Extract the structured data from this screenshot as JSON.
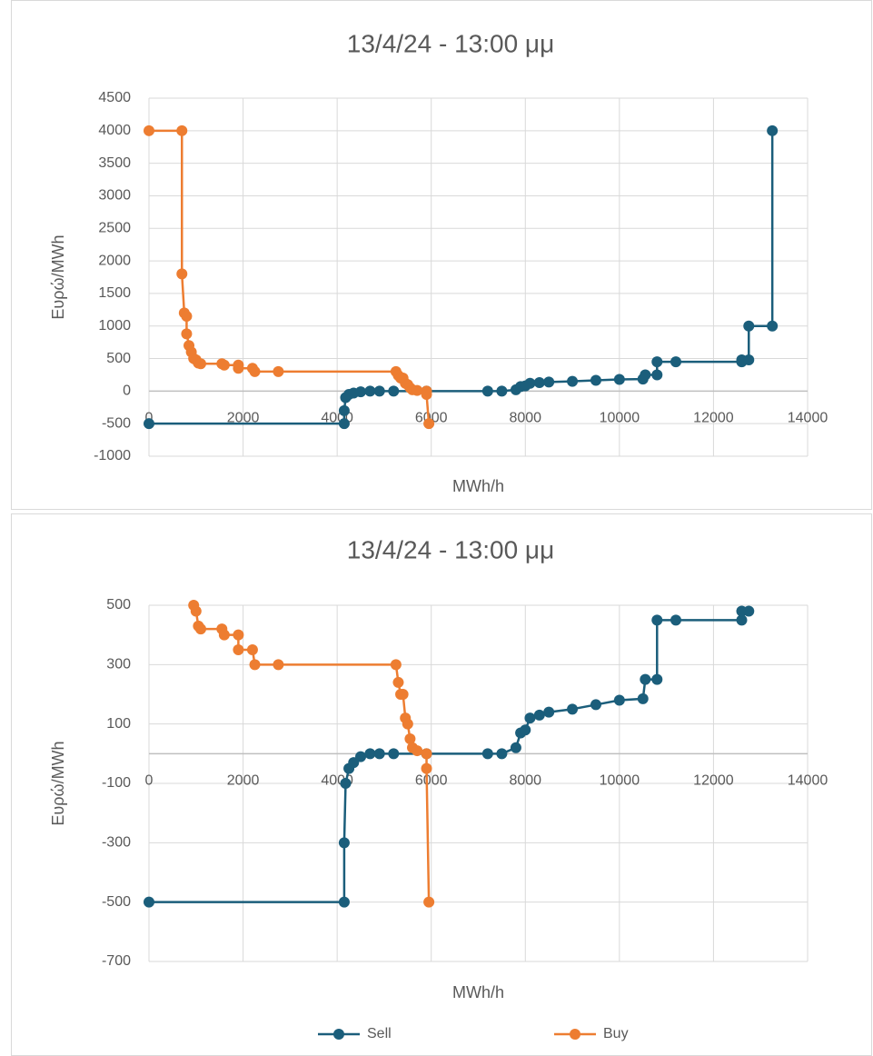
{
  "chart_data": [
    {
      "type": "line",
      "title": "13/4/24 - 13:00 μμ",
      "x_label": "MWh/h",
      "y_label": "Ευρώ/MWh",
      "xlim": [
        0,
        14000
      ],
      "xticks": [
        0,
        2000,
        4000,
        6000,
        8000,
        10000,
        12000,
        14000
      ],
      "ylim": [
        -1000,
        4500
      ],
      "yticks": [
        -1000,
        -500,
        0,
        500,
        1000,
        1500,
        2000,
        2500,
        3000,
        3500,
        4000,
        4500
      ],
      "grid": true,
      "series": [
        {
          "color": "#1b5e7b",
          "x": [
            0,
            4150,
            4150,
            4180,
            4250,
            4350,
            4500,
            4700,
            4900,
            5200,
            5900,
            7200,
            7500,
            7800,
            7900,
            8000,
            8100,
            8300,
            8500,
            9000,
            9500,
            10000,
            10500,
            10550,
            10800,
            10800,
            11200,
            12600,
            12600,
            12750,
            12750,
            13250,
            13250
          ],
          "values": [
            -500,
            -500,
            -300,
            -100,
            -50,
            -30,
            -10,
            0,
            0,
            0,
            0,
            0,
            0,
            20,
            70,
            80,
            120,
            130,
            140,
            150,
            165,
            180,
            185,
            250,
            250,
            450,
            450,
            450,
            480,
            480,
            1000,
            1000,
            4000
          ]
        },
        {
          "color": "#ed7d31",
          "x": [
            0,
            700,
            700,
            750,
            800,
            800,
            850,
            900,
            950,
            1000,
            1050,
            1100,
            1550,
            1600,
            1900,
            1900,
            2200,
            2250,
            2750,
            5250,
            5300,
            5350,
            5400,
            5450,
            5500,
            5550,
            5600,
            5700,
            5900,
            5900,
            5950
          ],
          "values": [
            4000,
            4000,
            1800,
            1200,
            1150,
            880,
            700,
            600,
            500,
            480,
            430,
            420,
            420,
            400,
            400,
            350,
            350,
            300,
            300,
            300,
            240,
            200,
            200,
            120,
            100,
            50,
            20,
            10,
            0,
            -50,
            -500
          ]
        }
      ]
    },
    {
      "type": "line",
      "title": "13/4/24 - 13:00 μμ",
      "x_label": "MWh/h",
      "y_label": "Ευρώ/MWh",
      "xlim": [
        0,
        14000
      ],
      "xticks": [
        0,
        2000,
        4000,
        6000,
        8000,
        10000,
        12000,
        14000
      ],
      "ylim": [
        -700,
        500
      ],
      "yticks": [
        -700,
        -500,
        -300,
        -100,
        100,
        300,
        500
      ],
      "grid": true,
      "legend": "bottom",
      "series": [
        {
          "name": "Sell",
          "color": "#1b5e7b",
          "x": [
            0,
            4150,
            4150,
            4180,
            4250,
            4350,
            4500,
            4700,
            4900,
            5200,
            5900,
            7200,
            7500,
            7800,
            7900,
            8000,
            8100,
            8300,
            8500,
            9000,
            9500,
            10000,
            10500,
            10550,
            10800,
            10800,
            11200,
            12600,
            12600,
            12750
          ],
          "values": [
            -500,
            -500,
            -300,
            -100,
            -50,
            -30,
            -10,
            0,
            0,
            0,
            0,
            0,
            0,
            20,
            70,
            80,
            120,
            130,
            140,
            150,
            165,
            180,
            185,
            250,
            250,
            450,
            450,
            450,
            480,
            480
          ]
        },
        {
          "name": "Buy",
          "color": "#ed7d31",
          "x": [
            950,
            1000,
            1050,
            1100,
            1550,
            1600,
            1900,
            1900,
            2200,
            2250,
            2750,
            5250,
            5300,
            5350,
            5400,
            5450,
            5500,
            5550,
            5600,
            5700,
            5900,
            5900,
            5950
          ],
          "values": [
            500,
            480,
            430,
            420,
            420,
            400,
            400,
            350,
            350,
            300,
            300,
            300,
            240,
            200,
            200,
            120,
            100,
            50,
            20,
            10,
            0,
            -50,
            -500
          ]
        }
      ]
    }
  ]
}
